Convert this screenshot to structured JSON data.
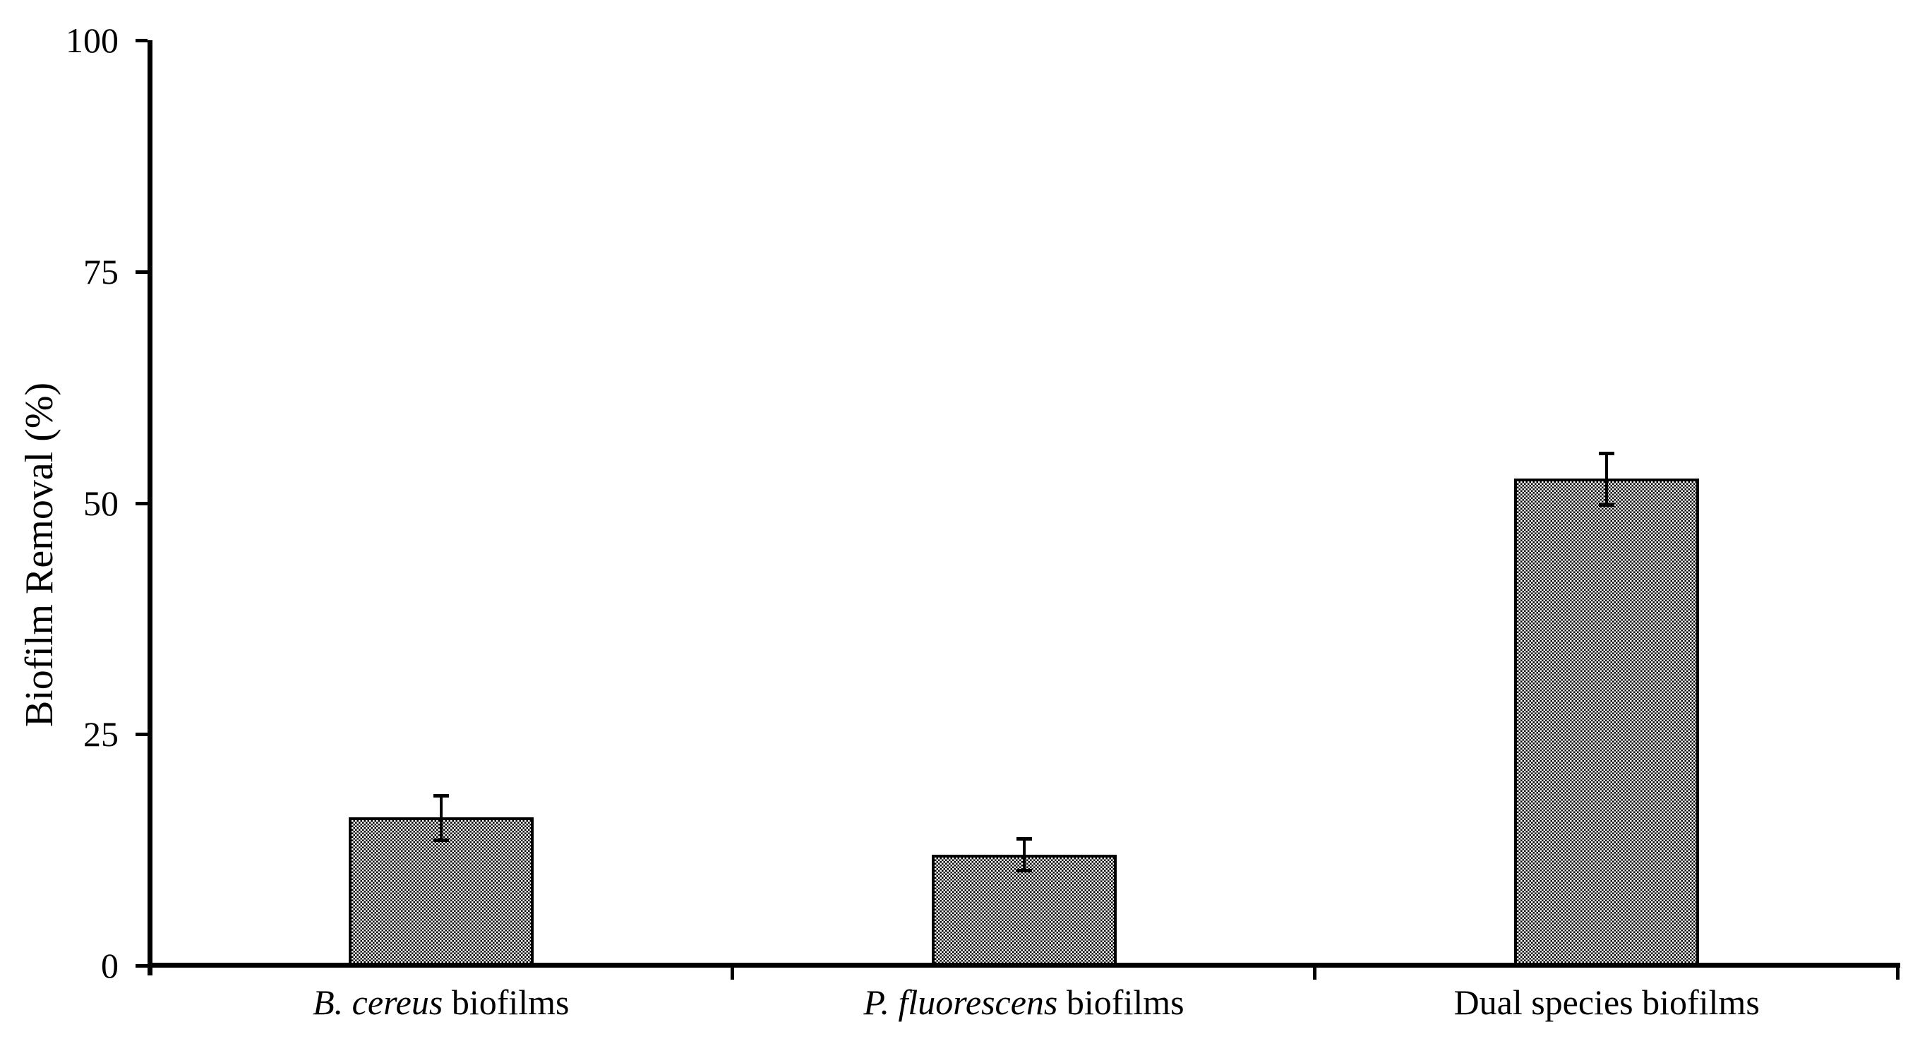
{
  "colors": {
    "foreground": "#000000",
    "background": "#ffffff"
  },
  "chart_data": {
    "type": "bar",
    "title": "",
    "ylabel": "Biofilm Removal (%)",
    "xlabel": "",
    "ylim": [
      0,
      100
    ],
    "yticks": [
      0,
      25,
      50,
      75,
      100
    ],
    "grid": false,
    "legend": null,
    "categories": [
      "B. cereus biofilms",
      "P. fluorescens biofilms",
      "Dual species biofilms"
    ],
    "italic_prefixes": [
      "B. cereus",
      "P. fluorescens",
      ""
    ],
    "values": [
      16.0,
      12.0,
      52.6
    ],
    "errors": [
      2.4,
      1.7,
      2.8
    ],
    "bar_fill": "halftone-checker",
    "bar_border": "#000000"
  }
}
